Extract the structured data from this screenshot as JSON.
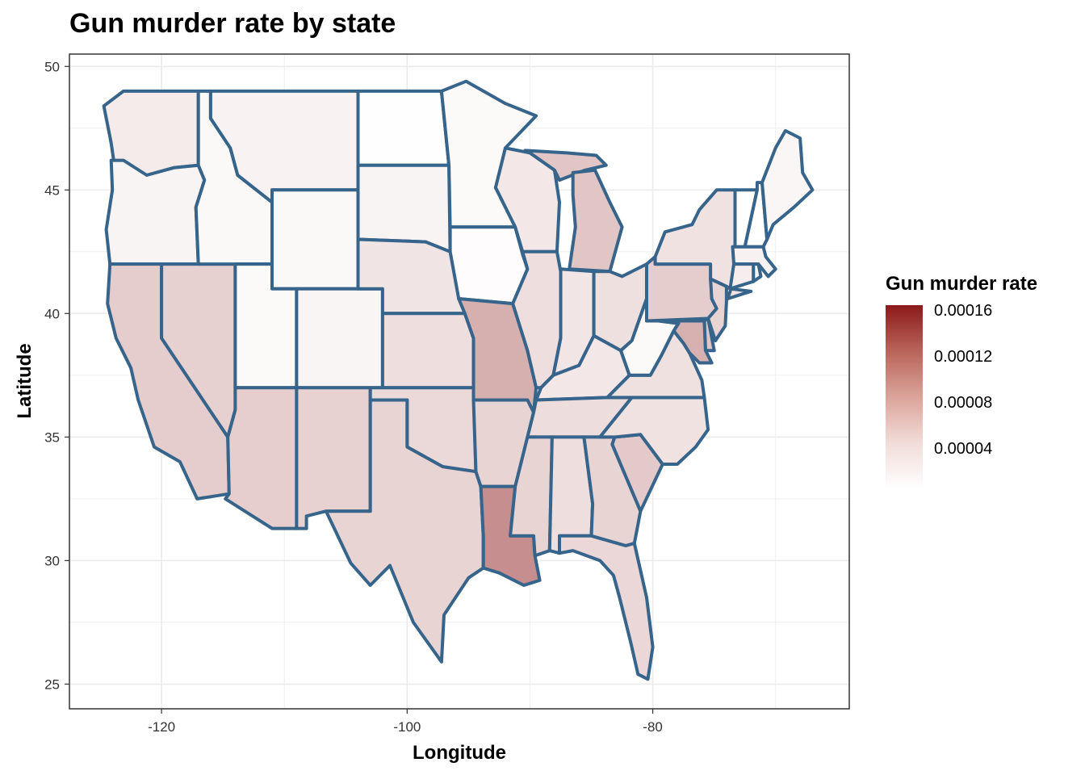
{
  "title": "Gun murder rate by state",
  "x_axis": {
    "title": "Longitude",
    "ticks": [
      "-120",
      "-100",
      "-80"
    ]
  },
  "y_axis": {
    "title": "Latitude",
    "ticks": [
      "25",
      "30",
      "35",
      "40",
      "45",
      "50"
    ]
  },
  "legend": {
    "title": "Gun murder rate",
    "labels": [
      "0.00016",
      "0.00012",
      "0.00008",
      "0.00004"
    ],
    "color_low": "#ffffff",
    "color_high": "#8b1a1a",
    "range": [
      1e-05,
      0.00017
    ]
  },
  "colors": {
    "border": "#36648b",
    "grid": "#ebebeb",
    "panel_border": "#333333"
  },
  "chart_data": {
    "type": "choropleth",
    "title": "Gun murder rate by state",
    "xlabel": "Longitude",
    "ylabel": "Latitude",
    "xlim": [
      -127.5,
      -64
    ],
    "ylim": [
      24,
      50.5
    ],
    "fill_variable": "Gun murder rate",
    "states": [
      {
        "state": "Washington",
        "rate": 2.4e-05
      },
      {
        "state": "Oregon",
        "rate": 1.8e-05
      },
      {
        "state": "California",
        "rate": 4.5e-05
      },
      {
        "state": "Nevada",
        "rate": 4.3e-05
      },
      {
        "state": "Idaho",
        "rate": 1.5e-05
      },
      {
        "state": "Montana",
        "rate": 1.9e-05
      },
      {
        "state": "Wyoming",
        "rate": 1.5e-05
      },
      {
        "state": "Utah",
        "rate": 1.4e-05
      },
      {
        "state": "Colorado",
        "rate": 1.7e-05
      },
      {
        "state": "Arizona",
        "rate": 4.4e-05
      },
      {
        "state": "New Mexico",
        "rate": 4.2e-05
      },
      {
        "state": "North Dakota",
        "rate": 1.1e-05
      },
      {
        "state": "South Dakota",
        "rate": 1.8e-05
      },
      {
        "state": "Nebraska",
        "rate": 2.9e-05
      },
      {
        "state": "Kansas",
        "rate": 3.3e-05
      },
      {
        "state": "Oklahoma",
        "rate": 3.7e-05
      },
      {
        "state": "Texas",
        "rate": 4e-05
      },
      {
        "state": "Minnesota",
        "rate": 1.4e-05
      },
      {
        "state": "Iowa",
        "rate": 1.2e-05
      },
      {
        "state": "Missouri",
        "rate": 6.6e-05
      },
      {
        "state": "Arkansas",
        "rate": 4e-05
      },
      {
        "state": "Louisiana",
        "rate": 8.9e-05
      },
      {
        "state": "Wisconsin",
        "rate": 2.7e-05
      },
      {
        "state": "Illinois",
        "rate": 3.3e-05
      },
      {
        "state": "Michigan",
        "rate": 5e-05
      },
      {
        "state": "Indiana",
        "rate": 2.8e-05
      },
      {
        "state": "Ohio",
        "rate": 3.2e-05
      },
      {
        "state": "Kentucky",
        "rate": 2.7e-05
      },
      {
        "state": "Tennessee",
        "rate": 3.4e-05
      },
      {
        "state": "Mississippi",
        "rate": 4e-05
      },
      {
        "state": "Alabama",
        "rate": 3.3e-05
      },
      {
        "state": "Georgia",
        "rate": 4e-05
      },
      {
        "state": "Florida",
        "rate": 3.8e-05
      },
      {
        "state": "South Carolina",
        "rate": 4.8e-05
      },
      {
        "state": "North Carolina",
        "rate": 3e-05
      },
      {
        "state": "Virginia",
        "rate": 3.1e-05
      },
      {
        "state": "West Virginia",
        "rate": 1.4e-05
      },
      {
        "state": "Pennsylvania",
        "rate": 4.5e-05
      },
      {
        "state": "New York",
        "rate": 3e-05
      },
      {
        "state": "Vermont",
        "rate": 8e-06
      },
      {
        "state": "New Hampshire",
        "rate": 8e-06
      },
      {
        "state": "Maine",
        "rate": 1.6e-05
      },
      {
        "state": "Massachusetts",
        "rate": 2e-05
      },
      {
        "state": "Connecticut",
        "rate": 2.2e-05
      },
      {
        "state": "Rhode Island",
        "rate": 1.5e-05
      },
      {
        "state": "New Jersey",
        "rate": 4e-05
      },
      {
        "state": "Delaware",
        "rate": 5e-05
      },
      {
        "state": "Maryland",
        "rate": 6.5e-05
      }
    ]
  }
}
